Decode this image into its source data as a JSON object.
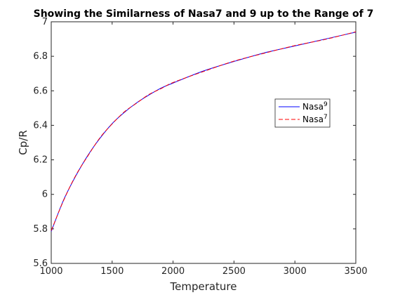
{
  "chart_data": {
    "type": "line",
    "title": "Showing the Similarness of Nasa7 and 9 up to the Range of 7",
    "xlabel": "Temperature",
    "ylabel": "Cp/R",
    "xlim": [
      1000,
      3500
    ],
    "ylim": [
      5.6,
      7
    ],
    "xticks": [
      1000,
      1500,
      2000,
      2500,
      3000,
      3500
    ],
    "yticks": [
      5.6,
      5.8,
      6,
      6.2,
      6.4,
      6.6,
      6.8,
      7
    ],
    "xtick_labels": [
      "1000",
      "1500",
      "2000",
      "2500",
      "3000",
      "3500"
    ],
    "ytick_labels": [
      "5.6",
      "5.8",
      "6",
      "6.2",
      "6.4",
      "6.6",
      "6.8",
      "7"
    ],
    "grid": false,
    "legend_position": "right",
    "x": [
      1000,
      1100,
      1200,
      1300,
      1400,
      1500,
      1600,
      1700,
      1800,
      1900,
      2000,
      2250,
      2500,
      2750,
      3000,
      3250,
      3500
    ],
    "series": [
      {
        "name": "Nasa",
        "superscript": "9",
        "color": "#0000ff",
        "dash": "solid",
        "values": [
          5.785,
          5.965,
          6.105,
          6.225,
          6.325,
          6.41,
          6.475,
          6.53,
          6.575,
          6.615,
          6.645,
          6.715,
          6.77,
          6.82,
          6.86,
          6.9,
          6.94
        ]
      },
      {
        "name": "Nasa",
        "superscript": "7",
        "color": "#ff0000",
        "dash": "dashed",
        "values": [
          5.79,
          5.962,
          6.108,
          6.222,
          6.328,
          6.408,
          6.478,
          6.528,
          6.578,
          6.612,
          6.648,
          6.712,
          6.772,
          6.818,
          6.862,
          6.898,
          6.942
        ]
      }
    ]
  }
}
